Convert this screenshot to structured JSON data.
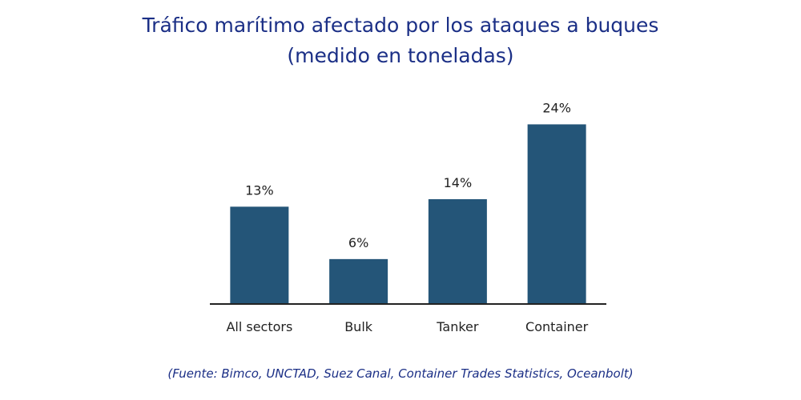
{
  "chart_data": {
    "type": "bar",
    "title_line1": "Tráfico marítimo afectado por los ataques a buques",
    "title_line2": "(medido en toneladas)",
    "categories": [
      "All sectors",
      "Bulk",
      "Tanker",
      "Container"
    ],
    "values": [
      13,
      6,
      14,
      24
    ],
    "value_labels": [
      "13%",
      "6%",
      "14%",
      "24%"
    ],
    "unit": "%",
    "ylim": [
      0,
      28
    ],
    "xlabel": "",
    "ylabel": "",
    "grid": false,
    "bar_color": "#245578"
  },
  "source": "(Fuente: Bimco, UNCTAD, Suez Canal, Container Trades Statistics, Oceanbolt)"
}
